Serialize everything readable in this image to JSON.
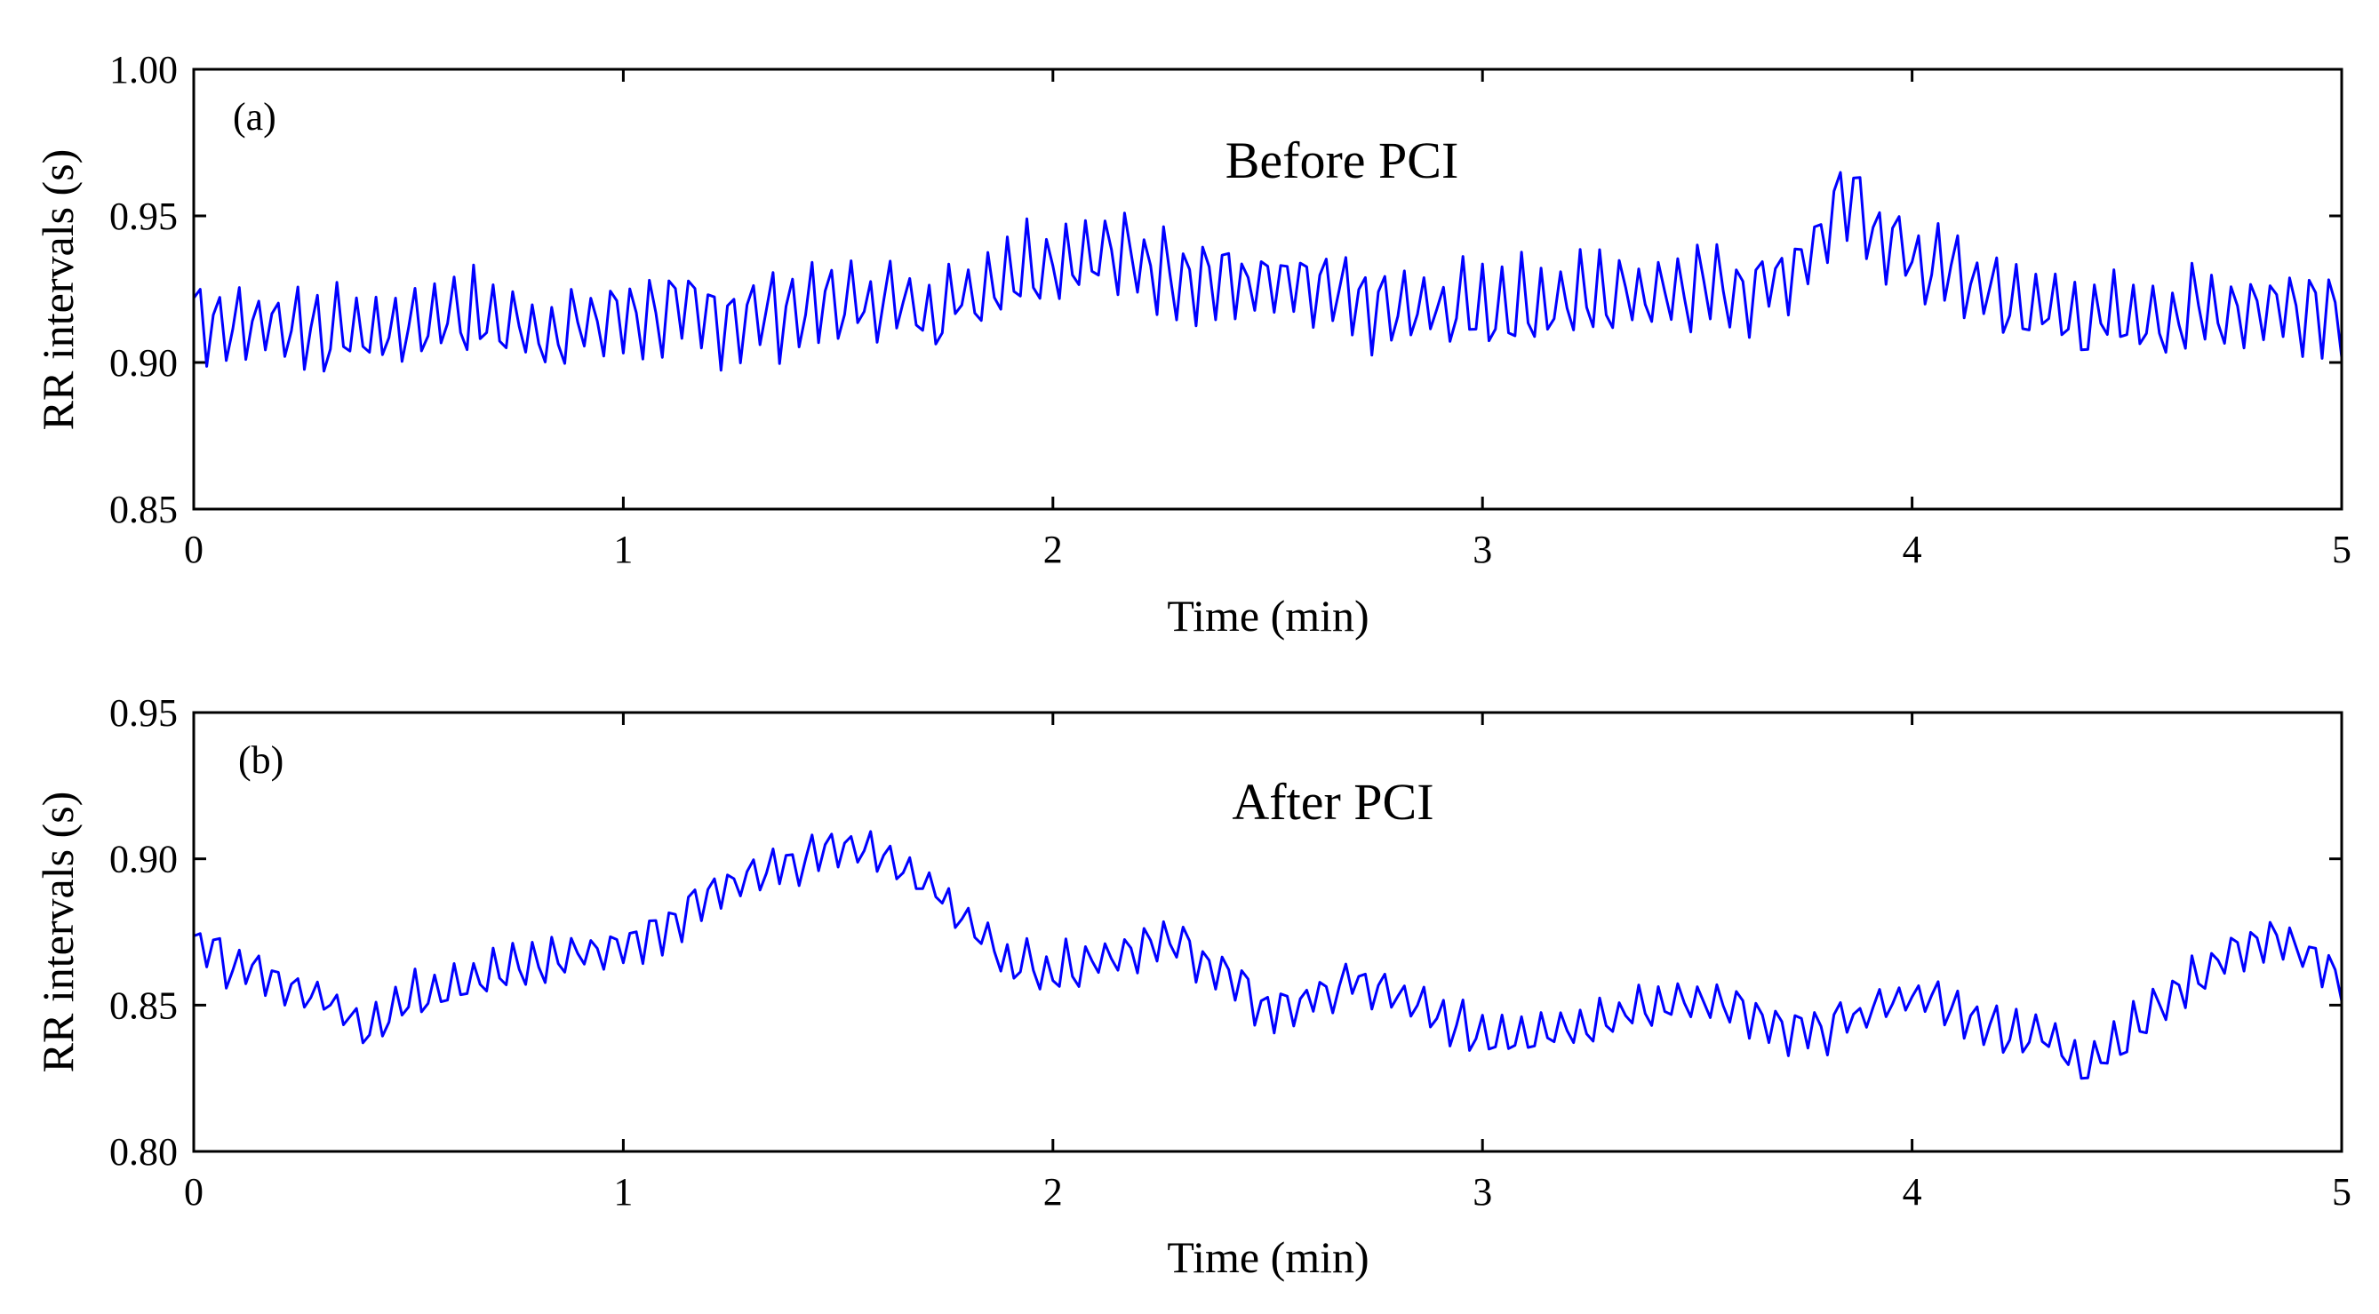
{
  "chart_data": [
    {
      "type": "line",
      "panel_label": "(a)",
      "title": "Before PCI",
      "xlabel": "Time (min)",
      "ylabel": "RR intervals (s)",
      "xlim": [
        0,
        5
      ],
      "ylim": [
        0.85,
        1.0
      ],
      "xticks": [
        "0",
        "1",
        "2",
        "3",
        "4",
        "5"
      ],
      "yticks": [
        "0.85",
        "0.90",
        "0.95",
        "1.00"
      ],
      "series": [
        {
          "name": "RR intervals",
          "color": "#0000ff",
          "x": [
            0,
            0.1,
            0.2,
            0.3,
            0.4,
            0.5,
            0.6,
            0.7,
            0.8,
            0.9,
            1.0,
            1.1,
            1.2,
            1.3,
            1.4,
            1.5,
            1.6,
            1.7,
            1.8,
            1.9,
            2.0,
            2.1,
            2.2,
            2.3,
            2.4,
            2.5,
            2.6,
            2.7,
            2.8,
            2.9,
            3.0,
            3.1,
            3.2,
            3.3,
            3.4,
            3.5,
            3.6,
            3.7,
            3.75,
            3.8,
            3.85,
            3.9,
            4.0,
            4.1,
            4.2,
            4.3,
            4.4,
            4.5,
            4.6,
            4.7,
            4.8,
            4.9,
            5.0
          ],
          "y": [
            0.917,
            0.912,
            0.914,
            0.911,
            0.91,
            0.912,
            0.918,
            0.914,
            0.911,
            0.912,
            0.916,
            0.917,
            0.915,
            0.916,
            0.918,
            0.92,
            0.921,
            0.918,
            0.922,
            0.932,
            0.935,
            0.938,
            0.934,
            0.931,
            0.928,
            0.926,
            0.925,
            0.92,
            0.917,
            0.918,
            0.919,
            0.92,
            0.921,
            0.923,
            0.925,
            0.927,
            0.925,
            0.93,
            0.936,
            0.945,
            0.956,
            0.948,
            0.935,
            0.93,
            0.922,
            0.918,
            0.915,
            0.914,
            0.916,
            0.918,
            0.919,
            0.92,
            0.919
          ],
          "oscillation_amplitude": 0.013,
          "oscillation_period_min": 0.046
        }
      ]
    },
    {
      "type": "line",
      "panel_label": "(b)",
      "title": "After PCI",
      "xlabel": "Time (min)",
      "ylabel": "RR intervals (s)",
      "xlim": [
        0,
        5
      ],
      "ylim": [
        0.8,
        0.95
      ],
      "xticks": [
        "0",
        "1",
        "2",
        "3",
        "4",
        "5"
      ],
      "yticks": [
        "0.80",
        "0.85",
        "0.90",
        "0.95"
      ],
      "series": [
        {
          "name": "RR intervals",
          "color": "#0000ff",
          "x": [
            0,
            0.1,
            0.2,
            0.3,
            0.4,
            0.5,
            0.6,
            0.7,
            0.8,
            0.9,
            1.0,
            1.1,
            1.2,
            1.3,
            1.4,
            1.5,
            1.6,
            1.7,
            1.8,
            1.9,
            2.0,
            2.1,
            2.2,
            2.3,
            2.4,
            2.5,
            2.6,
            2.7,
            2.8,
            2.9,
            3.0,
            3.1,
            3.2,
            3.3,
            3.4,
            3.5,
            3.6,
            3.7,
            3.8,
            3.9,
            4.0,
            4.1,
            4.2,
            4.3,
            4.4,
            4.5,
            4.6,
            4.7,
            4.8,
            4.9,
            5.0
          ],
          "y": [
            0.872,
            0.862,
            0.858,
            0.852,
            0.843,
            0.852,
            0.858,
            0.861,
            0.864,
            0.868,
            0.87,
            0.877,
            0.889,
            0.894,
            0.898,
            0.904,
            0.902,
            0.893,
            0.878,
            0.865,
            0.862,
            0.866,
            0.87,
            0.871,
            0.86,
            0.848,
            0.852,
            0.858,
            0.853,
            0.845,
            0.84,
            0.841,
            0.843,
            0.846,
            0.849,
            0.853,
            0.848,
            0.84,
            0.842,
            0.848,
            0.854,
            0.848,
            0.842,
            0.84,
            0.83,
            0.84,
            0.853,
            0.864,
            0.872,
            0.87,
            0.856
          ],
          "oscillation_amplitude": 0.007,
          "oscillation_period_min": 0.046
        }
      ]
    }
  ]
}
